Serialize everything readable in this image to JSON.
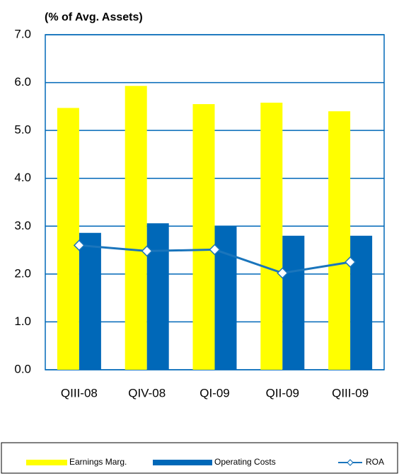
{
  "chart_data": {
    "type": "bar",
    "title": "(% of Avg. Assets)",
    "categories": [
      "QIII-08",
      "QIV-08",
      "QI-09",
      "QII-09",
      "QIII-09"
    ],
    "series": [
      {
        "name": "Earnings Marg.",
        "color": "#ffff00",
        "values": [
          5.47,
          5.93,
          5.55,
          5.58,
          5.4
        ]
      },
      {
        "name": "Operating Costs",
        "color": "#0068b8",
        "values": [
          2.86,
          3.06,
          2.99,
          2.8,
          2.8
        ]
      },
      {
        "name": "ROA",
        "color": "#1a75bc",
        "type": "line",
        "values": [
          2.6,
          2.48,
          2.51,
          2.02,
          2.25
        ]
      }
    ],
    "ylim": [
      0,
      7
    ],
    "yticks": [
      {
        "value": 0,
        "label": "0.0"
      },
      {
        "value": 1,
        "label": "1.0"
      },
      {
        "value": 2,
        "label": "2.0"
      },
      {
        "value": 3,
        "label": "3.0"
      },
      {
        "value": 4,
        "label": "4.0"
      },
      {
        "value": 5,
        "label": "5.0"
      },
      {
        "value": 6,
        "label": "6.0"
      },
      {
        "value": 7,
        "label": "7.0"
      }
    ],
    "grid": true
  }
}
